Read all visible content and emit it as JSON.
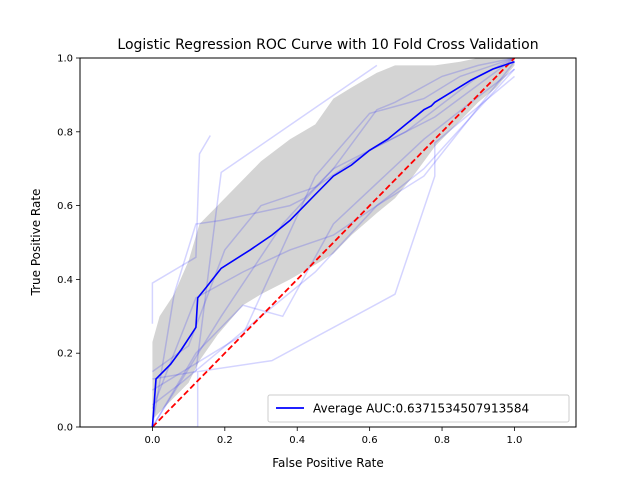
{
  "chart_data": {
    "type": "line",
    "title": "Logistic Regression ROC Curve with 10 Fold Cross Validation",
    "xlabel": "False Positive Rate",
    "ylabel": "True Positive Rate",
    "xlim": [
      -0.2,
      1.17
    ],
    "ylim": [
      0,
      1
    ],
    "xticks": [
      "0.0",
      "0.2",
      "0.4",
      "0.6",
      "0.8",
      "1.0"
    ],
    "yticks": [
      "0.0",
      "0.2",
      "0.4",
      "0.6",
      "0.8",
      "1.0"
    ],
    "grid": false,
    "legend_position": "lower-right",
    "legend": {
      "average_label": "Average AUC:0.6371534507913584"
    },
    "colors": {
      "average": "#0000ff",
      "folds": "#0000ff",
      "chance": "#ff0000",
      "band": "#b0b0b0"
    },
    "band": {
      "x": [
        0.0,
        0.02,
        0.06,
        0.1,
        0.13,
        0.18,
        0.25,
        0.3,
        0.38,
        0.45,
        0.5,
        0.55,
        0.62,
        0.67,
        0.72,
        0.78,
        0.85,
        0.9,
        0.95,
        1.0
      ],
      "upper": [
        0.23,
        0.3,
        0.36,
        0.45,
        0.55,
        0.6,
        0.67,
        0.72,
        0.78,
        0.82,
        0.89,
        0.92,
        0.96,
        0.98,
        0.98,
        0.98,
        0.99,
        1.0,
        1.0,
        1.0
      ],
      "lower": [
        0.02,
        0.04,
        0.08,
        0.12,
        0.18,
        0.25,
        0.33,
        0.36,
        0.4,
        0.44,
        0.47,
        0.52,
        0.58,
        0.62,
        0.68,
        0.76,
        0.83,
        0.88,
        0.92,
        0.98
      ]
    },
    "series": [
      {
        "name": "Average AUC:0.6371534507913584",
        "x": [
          0.0,
          0.01,
          0.05,
          0.08,
          0.12,
          0.125,
          0.15,
          0.19,
          0.27,
          0.33,
          0.38,
          0.45,
          0.5,
          0.55,
          0.6,
          0.65,
          0.7,
          0.75,
          0.77,
          0.78,
          0.83,
          0.88,
          0.94,
          1.0
        ],
        "y": [
          0.0,
          0.13,
          0.17,
          0.21,
          0.27,
          0.35,
          0.38,
          0.43,
          0.48,
          0.52,
          0.56,
          0.63,
          0.68,
          0.71,
          0.75,
          0.78,
          0.82,
          0.86,
          0.87,
          0.88,
          0.91,
          0.94,
          0.97,
          0.99
        ]
      },
      {
        "x": [
          0.0,
          0.0,
          0.12,
          0.13,
          0.16
        ],
        "y": [
          0.28,
          0.39,
          0.46,
          0.74,
          0.79
        ]
      },
      {
        "x": [
          0.0,
          0.12,
          0.19,
          0.62
        ],
        "y": [
          0.13,
          0.15,
          0.69,
          0.98
        ]
      },
      {
        "x": [
          0.0,
          0.25,
          0.45,
          0.6,
          0.75,
          0.85,
          1.0
        ],
        "y": [
          0.1,
          0.25,
          0.68,
          0.85,
          0.89,
          0.95,
          1.0
        ]
      },
      {
        "x": [
          0.0,
          0.06,
          0.12,
          0.19,
          0.38,
          0.42,
          0.5,
          0.7,
          0.9,
          1.0
        ],
        "y": [
          0.0,
          0.36,
          0.55,
          0.56,
          0.6,
          0.62,
          0.7,
          0.8,
          0.95,
          1.0
        ]
      },
      {
        "x": [
          0.0,
          0.12,
          0.25,
          0.38,
          0.5,
          0.62,
          0.75,
          1.0
        ],
        "y": [
          0.05,
          0.35,
          0.42,
          0.48,
          0.52,
          0.6,
          0.68,
          0.99
        ]
      },
      {
        "x": [
          0.0,
          0.125,
          0.125,
          0.33,
          0.67,
          0.78,
          0.78,
          1.0
        ],
        "y": [
          0.0,
          0.0,
          0.15,
          0.18,
          0.36,
          0.68,
          0.77,
          0.95
        ]
      },
      {
        "x": [
          0.0,
          0.19,
          0.36,
          0.5,
          0.62,
          0.67,
          0.8,
          0.9,
          1.0
        ],
        "y": [
          0.0,
          0.3,
          0.55,
          0.7,
          0.86,
          0.88,
          0.95,
          0.98,
          1.0
        ]
      },
      {
        "x": [
          0.0,
          0.12,
          0.25,
          0.36,
          0.5,
          0.75,
          0.88,
          1.0
        ],
        "y": [
          0.0,
          0.2,
          0.33,
          0.3,
          0.55,
          0.78,
          0.88,
          0.97
        ]
      },
      {
        "x": [
          0.0,
          0.1,
          0.2,
          0.3,
          0.45,
          0.6,
          0.78,
          1.0
        ],
        "y": [
          0.15,
          0.22,
          0.48,
          0.6,
          0.65,
          0.75,
          0.84,
          1.0
        ]
      },
      {
        "x": [
          0.0,
          0.08,
          0.3,
          0.45,
          0.62,
          0.75,
          1.0
        ],
        "y": [
          0.06,
          0.12,
          0.3,
          0.42,
          0.6,
          0.7,
          0.97
        ]
      }
    ],
    "chance_line": {
      "x": [
        0,
        1
      ],
      "y": [
        0,
        1
      ]
    }
  }
}
